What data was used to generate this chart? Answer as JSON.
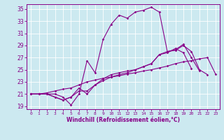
{
  "xlabel": "Windchill (Refroidissement éolien,°C)",
  "background_color": "#cce9f0",
  "line_color": "#880088",
  "xlim": [
    -0.5,
    23.5
  ],
  "ylim": [
    18.5,
    35.8
  ],
  "xticks": [
    0,
    1,
    2,
    3,
    4,
    5,
    6,
    7,
    8,
    9,
    10,
    11,
    12,
    13,
    14,
    15,
    16,
    17,
    18,
    19,
    20,
    21,
    22,
    23
  ],
  "yticks": [
    19,
    21,
    23,
    25,
    27,
    29,
    31,
    33,
    35
  ],
  "series": [
    [
      21.0,
      21.0,
      21.0,
      21.0,
      20.5,
      19.2,
      21.0,
      26.5,
      24.5,
      30.0,
      32.5,
      34.0,
      33.5,
      34.5,
      34.8,
      35.3,
      34.5,
      28.0,
      28.3,
      29.2,
      27.0,
      24.8
    ],
    [
      21.0,
      21.0,
      21.0,
      20.5,
      20.0,
      20.5,
      22.0,
      21.0,
      22.5,
      23.5,
      24.2,
      24.5,
      24.8,
      25.0,
      25.5,
      26.0,
      27.5,
      28.0,
      28.2,
      29.0,
      28.0,
      25.0,
      24.2
    ],
    [
      21.0,
      21.0,
      21.0,
      20.5,
      20.0,
      20.5,
      21.5,
      21.5,
      22.5,
      23.2,
      23.8,
      24.2,
      24.5,
      25.0,
      25.5,
      26.0,
      27.5,
      27.8,
      28.5,
      27.8,
      25.2
    ],
    [
      21.0,
      21.0,
      21.2,
      21.5,
      21.8,
      22.0,
      22.5,
      23.0,
      23.3,
      23.6,
      23.8,
      24.0,
      24.3,
      24.5,
      24.8,
      25.0,
      25.3,
      25.6,
      26.0,
      26.3,
      26.5,
      26.8,
      27.0,
      24.3
    ]
  ],
  "series_x": [
    [
      0,
      1,
      2,
      3,
      4,
      5,
      6,
      7,
      8,
      9,
      10,
      11,
      12,
      13,
      14,
      15,
      16,
      17,
      18,
      19,
      20,
      21
    ],
    [
      0,
      1,
      2,
      3,
      4,
      5,
      6,
      7,
      8,
      9,
      10,
      11,
      12,
      13,
      14,
      15,
      16,
      17,
      18,
      19,
      20,
      21,
      22
    ],
    [
      0,
      1,
      2,
      3,
      4,
      5,
      6,
      7,
      8,
      9,
      10,
      11,
      12,
      13,
      14,
      15,
      16,
      17,
      18,
      19,
      20
    ],
    [
      0,
      1,
      2,
      3,
      4,
      5,
      6,
      7,
      8,
      9,
      10,
      11,
      12,
      13,
      14,
      15,
      16,
      17,
      18,
      19,
      20,
      21,
      22,
      23
    ]
  ]
}
